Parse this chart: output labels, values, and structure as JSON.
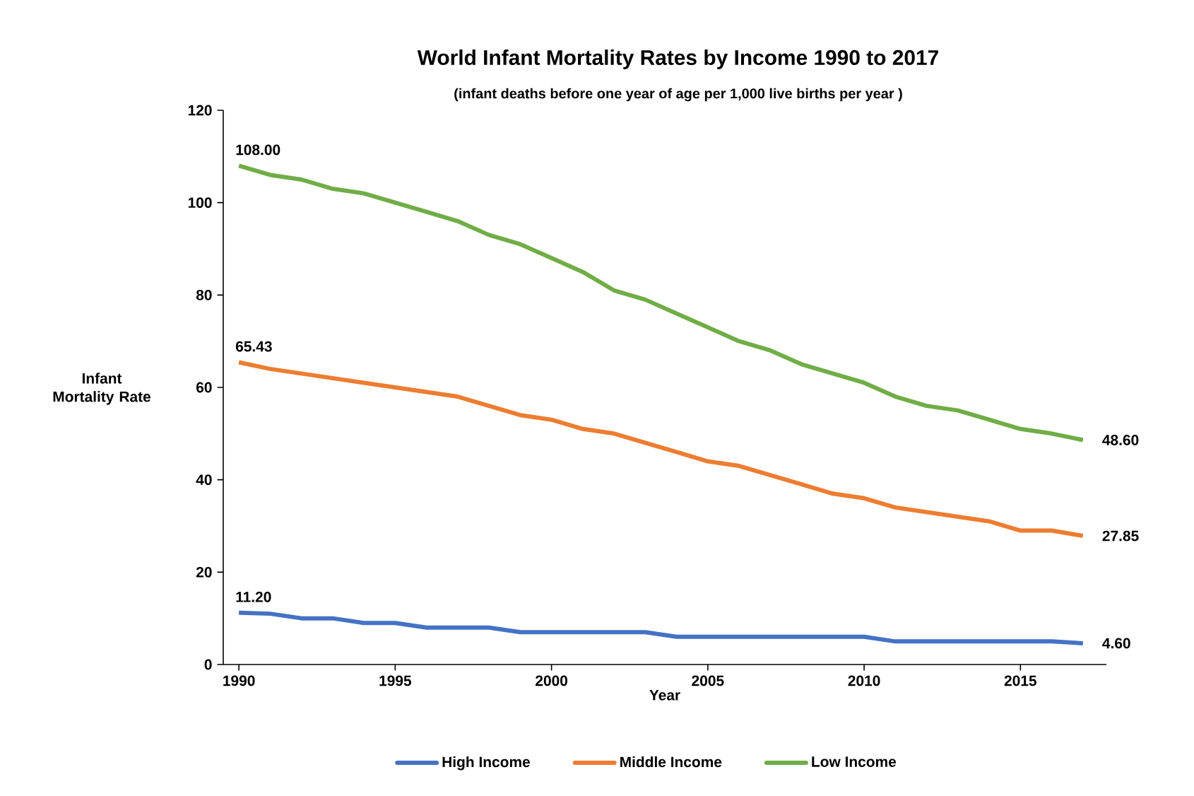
{
  "chart_data": {
    "type": "line",
    "title": "World Infant Mortality Rates by Income 1990 to 2017",
    "subtitle": "(infant deaths before one year of age per 1,000 live births per year )",
    "xlabel": "Year",
    "ylabel": "Infant Mortality Rate",
    "x": [
      1990,
      1991,
      1992,
      1993,
      1994,
      1995,
      1996,
      1997,
      1998,
      1999,
      2000,
      2001,
      2002,
      2003,
      2004,
      2005,
      2006,
      2007,
      2008,
      2009,
      2010,
      2011,
      2012,
      2013,
      2014,
      2015,
      2016,
      2017
    ],
    "xlim": [
      1989.5,
      2017.75
    ],
    "xticks": [
      1990,
      1995,
      2000,
      2005,
      2010,
      2015
    ],
    "ylim": [
      0,
      120
    ],
    "yticks": [
      0,
      20,
      40,
      60,
      80,
      100,
      120
    ],
    "grid": false,
    "legend": "bottom",
    "marker": "none",
    "line_style": "solid",
    "series": [
      {
        "name": "High Income",
        "color": "#4472c4",
        "values": [
          11.2,
          11,
          10,
          10,
          9,
          9,
          8,
          8,
          8,
          7,
          7,
          7,
          7,
          7,
          6,
          6,
          6,
          6,
          6,
          6,
          6,
          5,
          5,
          5,
          5,
          5,
          5,
          4.6
        ],
        "value_labels": [
          "11.20",
          null,
          null,
          null,
          null,
          null,
          null,
          null,
          null,
          null,
          null,
          null,
          null,
          null,
          null,
          null,
          null,
          null,
          null,
          null,
          null,
          null,
          null,
          null,
          null,
          null,
          null,
          "4.60"
        ]
      },
      {
        "name": "Middle Income",
        "color": "#ed7d31",
        "values": [
          65.43,
          64,
          63,
          62,
          61,
          60,
          59,
          58,
          56,
          54,
          53,
          51,
          50,
          48,
          46,
          44,
          43,
          41,
          39,
          37,
          36,
          34,
          33,
          32,
          31,
          29,
          29,
          27.85
        ],
        "value_labels": [
          "65.43",
          null,
          null,
          null,
          null,
          null,
          null,
          null,
          null,
          null,
          null,
          null,
          null,
          null,
          null,
          null,
          null,
          null,
          null,
          null,
          null,
          null,
          null,
          null,
          null,
          null,
          null,
          "27.85"
        ]
      },
      {
        "name": "Low Income",
        "color": "#70ad47",
        "values": [
          108.0,
          106,
          105,
          103,
          102,
          100,
          98,
          96,
          93,
          91,
          88,
          85,
          81,
          79,
          76,
          73,
          70,
          68,
          65,
          63,
          61,
          58,
          56,
          55,
          53,
          51,
          50,
          48.6
        ],
        "value_labels": [
          "108.00",
          null,
          null,
          null,
          null,
          null,
          null,
          null,
          null,
          null,
          null,
          null,
          null,
          null,
          null,
          null,
          null,
          null,
          null,
          null,
          null,
          null,
          null,
          null,
          null,
          null,
          null,
          "48.60"
        ]
      }
    ]
  }
}
